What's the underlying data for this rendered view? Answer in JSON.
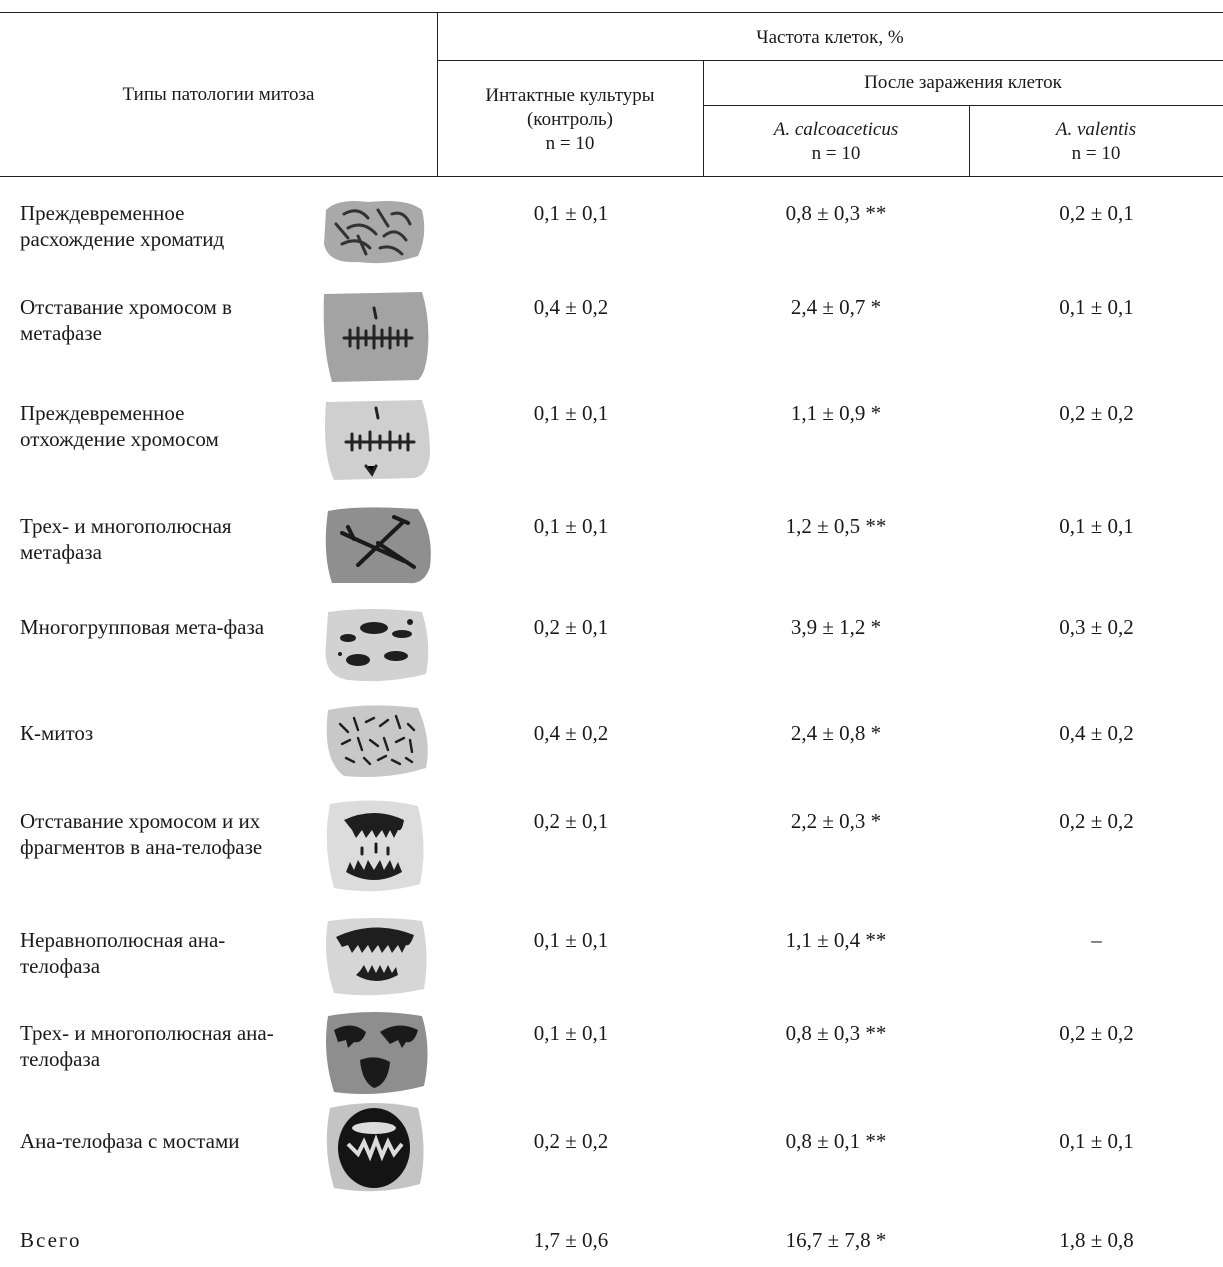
{
  "header": {
    "col_type": "Типы патологии митоза",
    "col_freq": "Частота клеток, %",
    "col_control_line1": "Интактные культуры",
    "col_control_line2": "(контроль)",
    "col_control_n": "n = 10",
    "col_after": "После заражения клеток",
    "col_calco": "A. calcoaceticus",
    "col_calco_n": "n = 10",
    "col_valentis": "A. valentis",
    "col_valentis_n": "n = 10"
  },
  "rows": [
    {
      "label": "Преждевременное расхождение хроматид",
      "control": "0,1 ± 0,1",
      "calco": "0,8 ± 0,3 **",
      "valentis": "0,2 ± 0,1",
      "image": "chromatid-separation-icon"
    },
    {
      "label": "Отставание хромосом в метафазе",
      "control": "0,4 ± 0,2",
      "calco": "2,4 ± 0,7 *",
      "valentis": "0,1 ± 0,1",
      "image": "metaphase-lagging-icon"
    },
    {
      "label": "Преждевременное отхождение хромосом",
      "control": "0,1 ± 0,1",
      "calco": "1,1 ± 0,9 *",
      "valentis": "0,2 ± 0,2",
      "image": "premature-departure-icon"
    },
    {
      "label": "Трех- и многополюсная метафаза",
      "control": "0,1 ± 0,1",
      "calco": "1,2 ± 0,5 **",
      "valentis": "0,1 ± 0,1",
      "image": "multipolar-metaphase-icon"
    },
    {
      "label": "Многогрупповая мета-фаза",
      "control": "0,2 ± 0,1",
      "calco": "3,9 ± 1,2 *",
      "valentis": "0,3 ± 0,2",
      "image": "multigroup-metaphase-icon"
    },
    {
      "label": "К-митоз",
      "control": "0,4 ± 0,2",
      "calco": "2,4 ± 0,8 *",
      "valentis": "0,4 ± 0,2",
      "image": "k-mitosis-icon"
    },
    {
      "label": "Отставание хромосом и их фрагментов в ана-телофазе",
      "control": "0,2 ± 0,1",
      "calco": "2,2 ± 0,3 *",
      "valentis": "0,2 ± 0,2",
      "image": "anaphase-lagging-icon"
    },
    {
      "label": "Неравнополюсная ана-телофаза",
      "control": "0,1 ± 0,1",
      "calco": "1,1 ± 0,4 **",
      "valentis": "–",
      "image": "unequal-anaphase-icon"
    },
    {
      "label": "Трех- и многополюсная ана-телофаза",
      "control": "0,1 ± 0,1",
      "calco": "0,8 ± 0,3 **",
      "valentis": "0,2 ± 0,2",
      "image": "multipolar-anaphase-icon"
    },
    {
      "label": "Ана-телофаза с мостами",
      "control": "0,2 ± 0,2",
      "calco": "0,8 ± 0,1 **",
      "valentis": "0,1 ± 0,1",
      "image": "anaphase-bridges-icon"
    }
  ],
  "total": {
    "label": "Всего",
    "control": "1,7 ± 0,6",
    "calco": "16,7 ± 7,8 *",
    "valentis": "1,8 ± 0,8"
  }
}
